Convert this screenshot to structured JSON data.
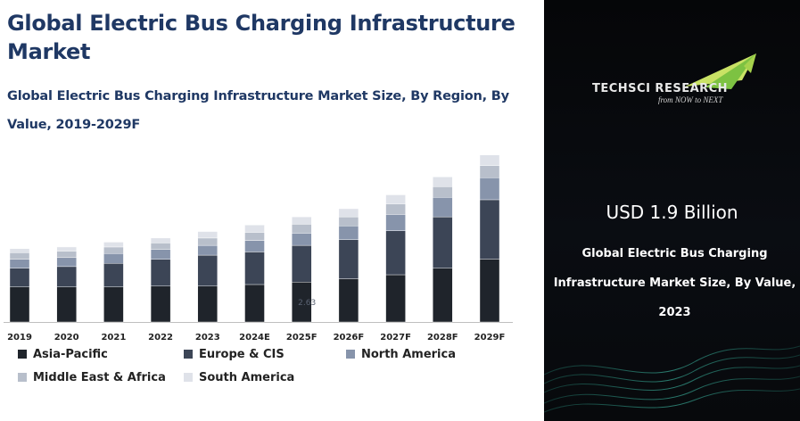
{
  "title": "Global Electric Bus Charging Infrastructure Market",
  "subtitle": "Global Electric Bus Charging Infrastructure Market Size, By Region, By Value, 2019-2029F",
  "chart_data": {
    "type": "bar",
    "stacked": true,
    "categories": [
      "2019",
      "2020",
      "2021",
      "2022",
      "2023",
      "2024E",
      "2025F",
      "2026F",
      "2027F",
      "2028F",
      "2029F"
    ],
    "series": [
      {
        "name": "Asia-Pacific",
        "color": "#1f242b",
        "values": [
          4.3,
          4.3,
          4.3,
          4.4,
          4.4,
          4.6,
          4.9,
          5.3,
          5.8,
          6.6,
          7.7
        ]
      },
      {
        "name": "Europe & CIS",
        "color": "#3c4556",
        "values": [
          2.3,
          2.5,
          2.9,
          3.3,
          3.8,
          4.0,
          4.5,
          4.8,
          5.4,
          6.3,
          7.3
        ]
      },
      {
        "name": "North America",
        "color": "#8794ab",
        "values": [
          1.1,
          1.1,
          1.2,
          1.2,
          1.2,
          1.4,
          1.5,
          1.7,
          2.0,
          2.4,
          2.7
        ]
      },
      {
        "name": "Middle East & Africa",
        "color": "#b8bfcb",
        "values": [
          0.8,
          0.8,
          0.8,
          0.8,
          0.9,
          1.0,
          1.1,
          1.1,
          1.3,
          1.3,
          1.5
        ]
      },
      {
        "name": "South America",
        "color": "#dfe2e9",
        "values": [
          0.5,
          0.5,
          0.6,
          0.6,
          0.8,
          0.9,
          0.9,
          1.0,
          1.1,
          1.2,
          1.3
        ]
      }
    ],
    "annotations": [
      {
        "category": "2025F",
        "text": "2.63"
      }
    ],
    "ylim": [
      0,
      22
    ],
    "grid": false,
    "legend_position": "bottom"
  },
  "right_panel": {
    "brand": "TECHSCI RESEARCH",
    "tagline": "from NOW to NEXT",
    "highlight_value": "USD 1.9 Billion",
    "description": "Global Electric Bus Charging Infrastructure Market Size, By Value, 2023",
    "logo_colors": [
      "#7dc242",
      "#c9e265"
    ]
  }
}
